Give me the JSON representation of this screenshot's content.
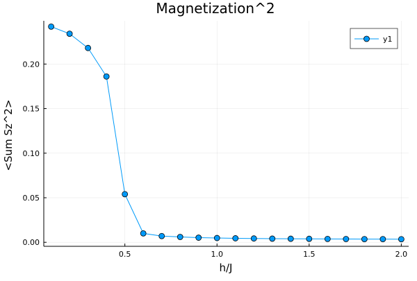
{
  "chart_data": {
    "type": "line",
    "title": "Magnetization^2",
    "xlabel": "h/J",
    "ylabel": "<Sum Sz^2>",
    "xlim": [
      0.06,
      2.04
    ],
    "ylim": [
      -0.0045,
      0.2485
    ],
    "xticks": [
      0.5,
      1.0,
      1.5,
      2.0
    ],
    "xtick_labels": [
      "0.5",
      "1.0",
      "1.5",
      "2.0"
    ],
    "yticks": [
      0.0,
      0.05,
      0.1,
      0.15,
      0.2
    ],
    "ytick_labels": [
      "0.00",
      "0.05",
      "0.10",
      "0.15",
      "0.20"
    ],
    "grid": true,
    "legend_position": "top-right",
    "series": [
      {
        "name": "y1",
        "color": "#009af9",
        "marker": "circle",
        "x": [
          0.1,
          0.2,
          0.3,
          0.4,
          0.5,
          0.6,
          0.7,
          0.8,
          0.9,
          1.0,
          1.1,
          1.2,
          1.3,
          1.4,
          1.5,
          1.6,
          1.7,
          1.8,
          1.9,
          2.0
        ],
        "y": [
          0.242,
          0.234,
          0.218,
          0.186,
          0.054,
          0.01,
          0.007,
          0.006,
          0.0052,
          0.0048,
          0.0045,
          0.0043,
          0.0041,
          0.004,
          0.0039,
          0.0038,
          0.0037,
          0.0036,
          0.0036,
          0.0035
        ]
      }
    ]
  }
}
